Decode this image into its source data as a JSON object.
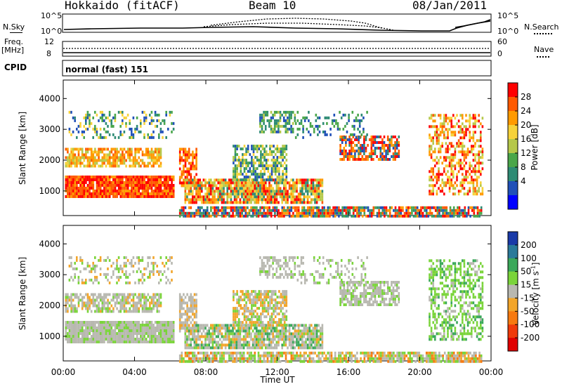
{
  "header": {
    "station": "Hokkaido (fitACF)",
    "beam": "Beam 10",
    "date": "08/Jan/2011"
  },
  "strips": {
    "nsky_label": "N.Sky",
    "nsky_ticks": [
      "10^5",
      "10^0"
    ],
    "nsearch_label": "N.Search",
    "nsearch_ticks": [
      "10^5",
      "10^0"
    ],
    "freq_label": "Freq.",
    "freq_unit": "[MHz]",
    "freq_ticks": [
      "12",
      "8"
    ],
    "nave_label": "Nave",
    "nave_ticks": [
      "60",
      "0"
    ],
    "cpid_label": "CPID",
    "cpid_value": "normal (fast) 151"
  },
  "chart_data": [
    {
      "type": "heatmap",
      "title": "",
      "xlabel": "",
      "ylabel": "Slant Range [km]",
      "xlim": [
        0,
        24
      ],
      "ylim": [
        200,
        4600
      ],
      "yticks": [
        1000,
        2000,
        3000,
        4000
      ],
      "colorbar": {
        "label": "Power [dB]",
        "ticks": [
          "28",
          "24",
          "20",
          "16",
          "12",
          "8",
          "4"
        ],
        "colors": [
          "#ff0000",
          "#ff5a00",
          "#ff9a00",
          "#f6d23a",
          "#b6c84a",
          "#4aa64a",
          "#2e8b74",
          "#2050b8",
          "#0000ff"
        ]
      }
    },
    {
      "type": "heatmap",
      "title": "",
      "xlabel": "Time UT",
      "ylabel": "Slant Range [km]",
      "xlim": [
        0,
        24
      ],
      "ylim": [
        200,
        4600
      ],
      "yticks": [
        1000,
        2000,
        3000,
        4000
      ],
      "colorbar": {
        "label": "Velocity [m s",
        "label_sup": "-1",
        "label_end": "]",
        "ticks": [
          "200",
          "100",
          "50",
          "15",
          "-15",
          "-50",
          "-100",
          "-200"
        ],
        "colors": [
          "#1a3aa8",
          "#2a7a9a",
          "#3aa85a",
          "#7ad43a",
          "#b8b8b0",
          "#f2a52a",
          "#f77a10",
          "#f03a0a",
          "#e00000"
        ]
      }
    }
  ],
  "x_ticks": [
    "00:00",
    "04:00",
    "08:00",
    "12:00",
    "16:00",
    "20:00",
    "00:00"
  ],
  "colors": {
    "velocity_ground": "#b8b8b0"
  }
}
